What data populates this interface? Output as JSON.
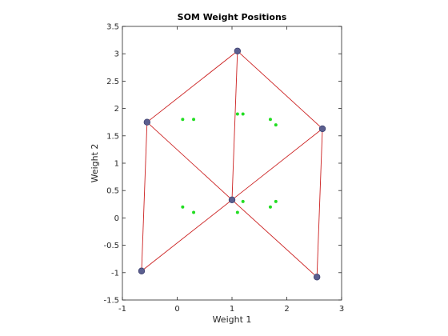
{
  "chart_data": {
    "type": "scatter",
    "title": "SOM Weight Positions",
    "xlabel": "Weight 1",
    "ylabel": "Weight 2",
    "xlim": [
      -1,
      3
    ],
    "ylim": [
      -1.5,
      3.5
    ],
    "xticks": [
      "-1",
      "0",
      "1",
      "2",
      "3"
    ],
    "yticks": [
      "-1.5",
      "-1",
      "-0.5",
      "0",
      "0.5",
      "1",
      "1.5",
      "2",
      "2.5",
      "3",
      "3.5"
    ],
    "grid": false,
    "neurons": [
      {
        "x": 1.1,
        "y": 3.05
      },
      {
        "x": -0.55,
        "y": 1.75
      },
      {
        "x": 2.65,
        "y": 1.63
      },
      {
        "x": 1.0,
        "y": 0.33
      },
      {
        "x": -0.65,
        "y": -0.97
      },
      {
        "x": 2.55,
        "y": -1.08
      }
    ],
    "edges": [
      [
        0,
        1
      ],
      [
        0,
        2
      ],
      [
        0,
        3
      ],
      [
        1,
        3
      ],
      [
        2,
        3
      ],
      [
        1,
        4
      ],
      [
        2,
        5
      ],
      [
        3,
        4
      ],
      [
        3,
        5
      ]
    ],
    "inputs": [
      {
        "x": 0.1,
        "y": 1.8
      },
      {
        "x": 0.3,
        "y": 1.8
      },
      {
        "x": 1.1,
        "y": 1.9
      },
      {
        "x": 1.2,
        "y": 1.9
      },
      {
        "x": 1.7,
        "y": 1.8
      },
      {
        "x": 1.8,
        "y": 1.7
      },
      {
        "x": 0.1,
        "y": 0.2
      },
      {
        "x": 0.3,
        "y": 0.1
      },
      {
        "x": 1.1,
        "y": 0.1
      },
      {
        "x": 1.2,
        "y": 0.3
      },
      {
        "x": 1.7,
        "y": 0.2
      },
      {
        "x": 1.8,
        "y": 0.3
      }
    ],
    "colors": {
      "edge": "#cc2222",
      "neuron_fill": "#5b5f8f",
      "neuron_stroke": "#3e4170",
      "input": "#22dd22",
      "axis": "#262626"
    }
  }
}
